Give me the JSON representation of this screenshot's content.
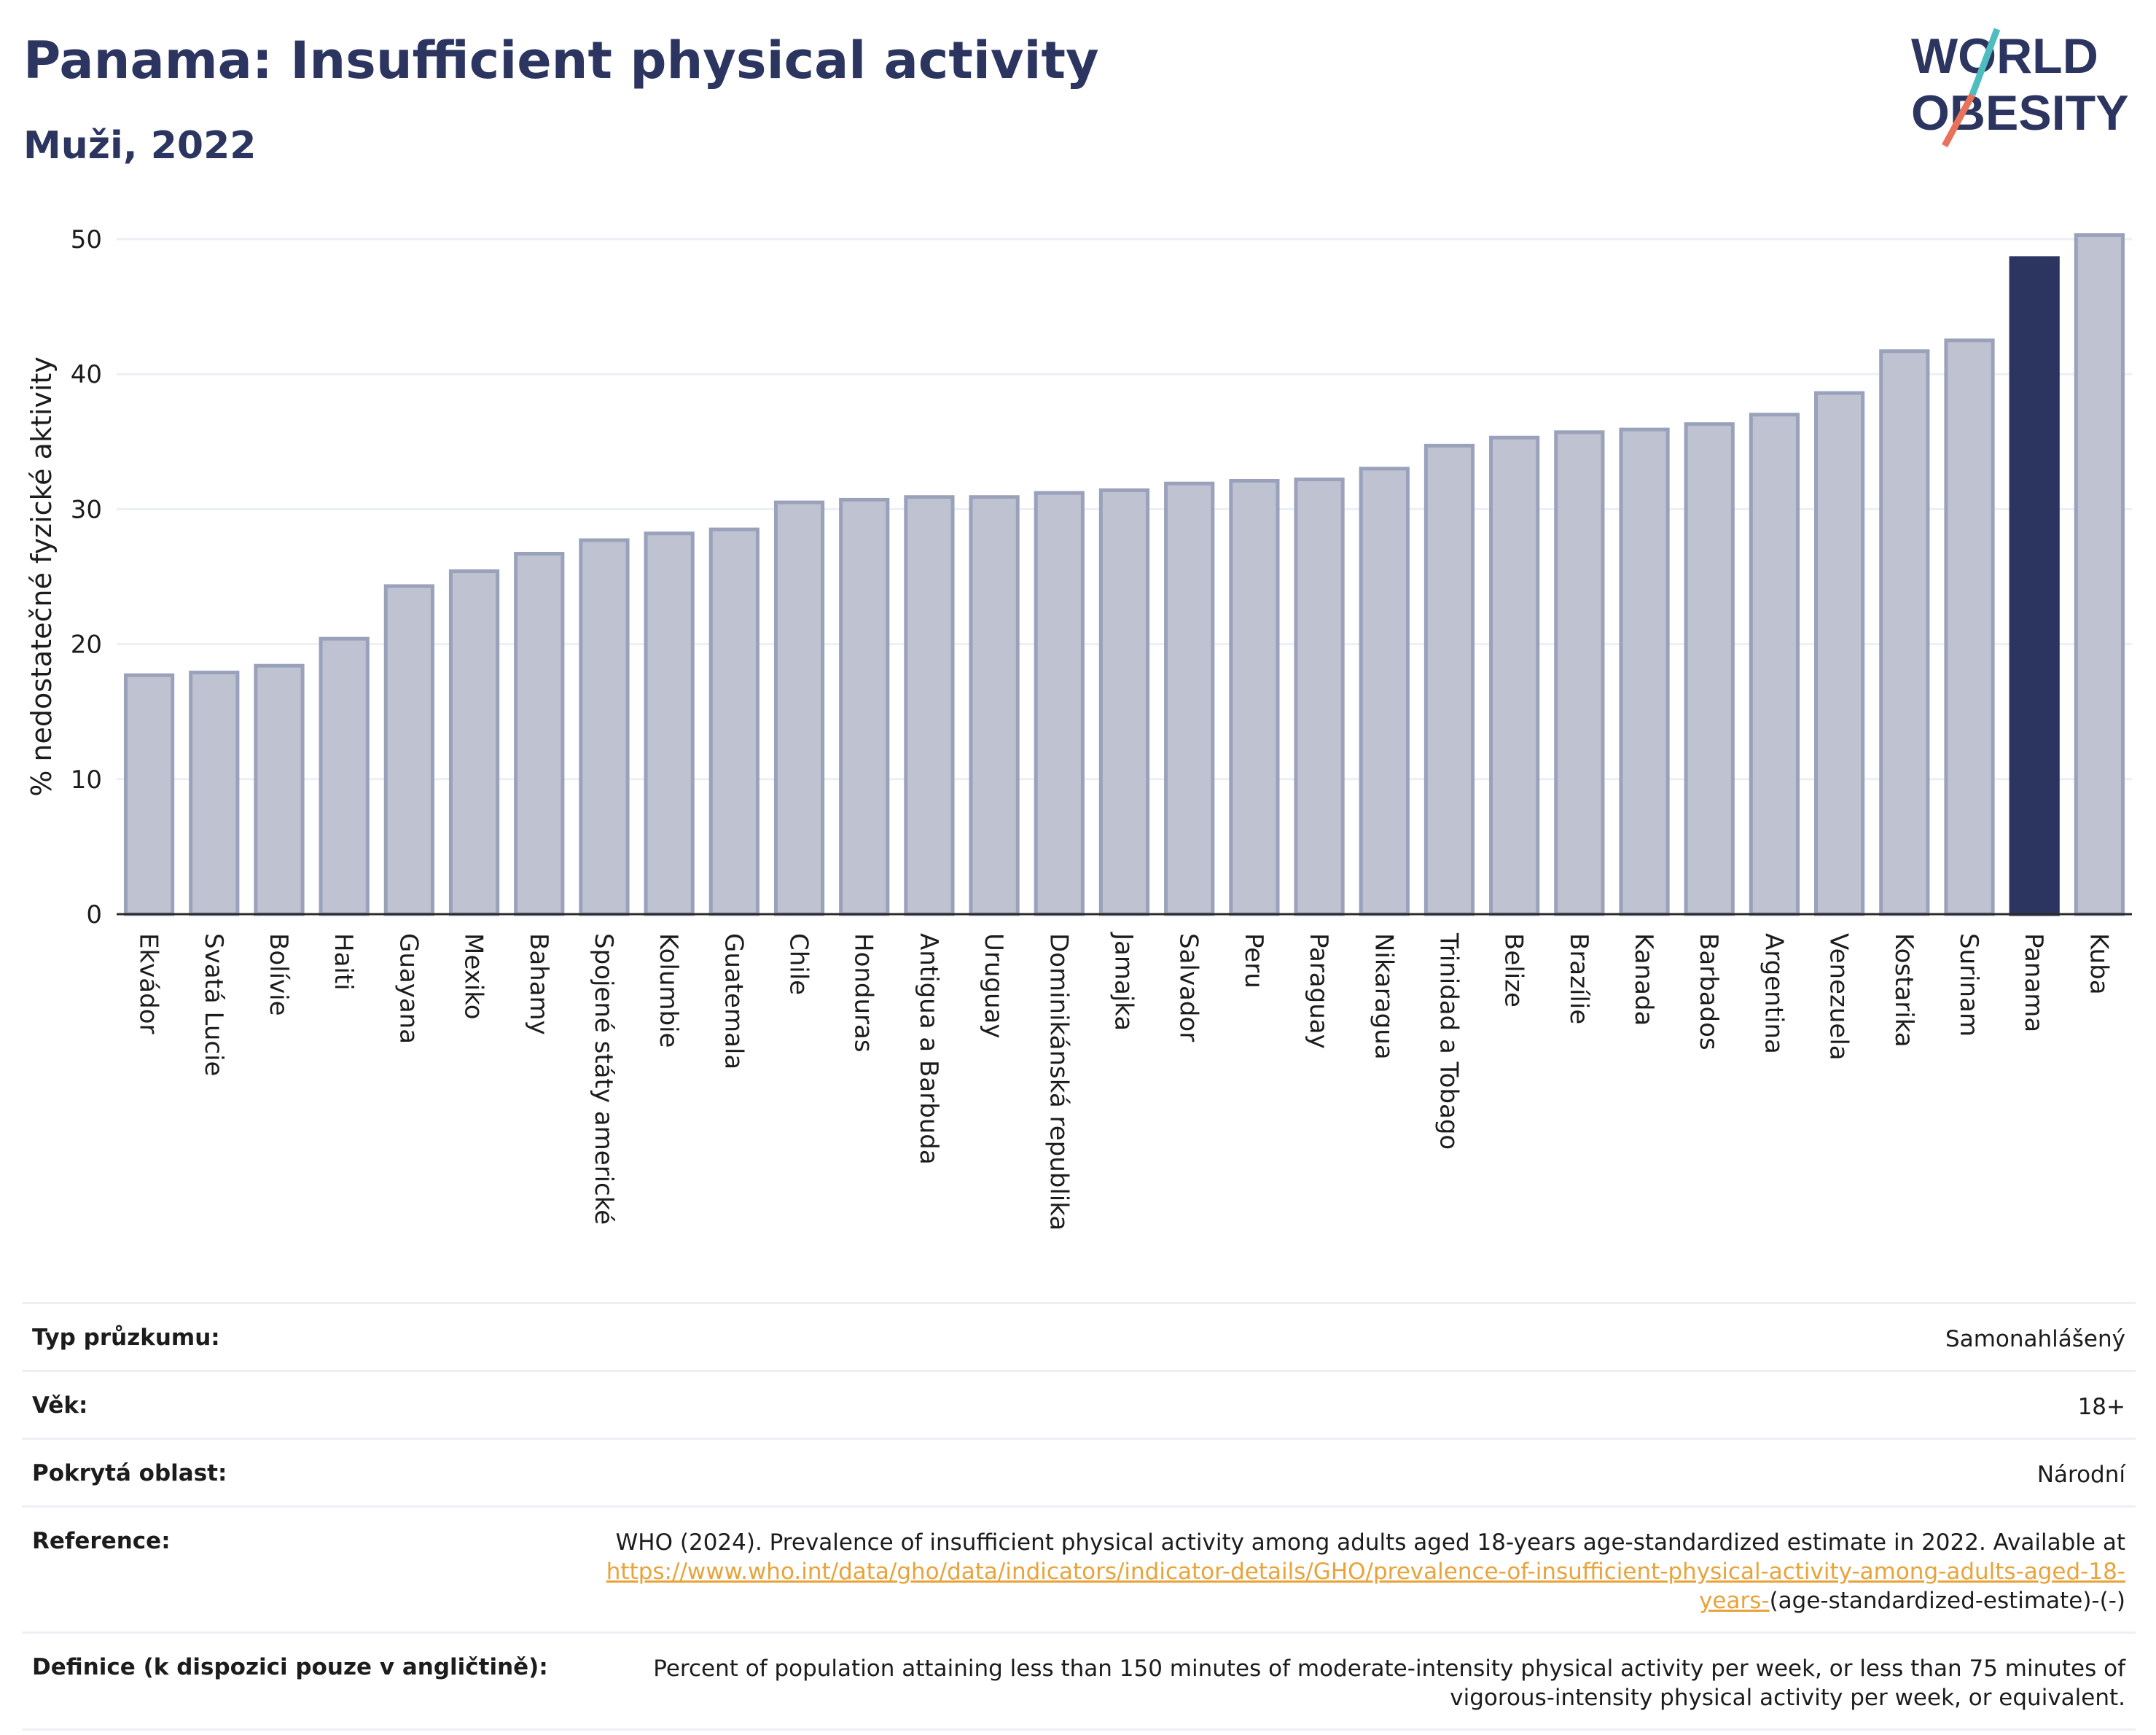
{
  "title": "Panama: Insufficient physical activity",
  "subtitle": "Muži, 2022",
  "logo": {
    "line1": "WORLD",
    "line2": "OBESITY"
  },
  "colors": {
    "bar": "#bfc3d1",
    "bar_border": "#9aa1bb",
    "highlight": "#2b3560",
    "title": "#2b3560",
    "link": "#e8a33a"
  },
  "chart_data": {
    "type": "bar",
    "ylabel": "% nedostatečné fyzické aktivity",
    "ylim": [
      0,
      50
    ],
    "yticks": [
      0,
      10,
      20,
      30,
      40,
      50
    ],
    "grid": true,
    "highlight": "Panama",
    "categories": [
      "Ekvádor",
      "Svatá Lucie",
      "Bolívie",
      "Haiti",
      "Guayana",
      "Mexiko",
      "Bahamy",
      "Spojené státy americké",
      "Kolumbie",
      "Guatemala",
      "Chile",
      "Honduras",
      "Antigua a Barbuda",
      "Uruguay",
      "Dominikánská republika",
      "Jamajka",
      "Salvador",
      "Peru",
      "Paraguay",
      "Nikaragua",
      "Trinidad a Tobago",
      "Belize",
      "Brazílie",
      "Kanada",
      "Barbados",
      "Argentina",
      "Venezuela",
      "Kostarika",
      "Surinam",
      "Panama",
      "Kuba"
    ],
    "values": [
      17.7,
      17.9,
      18.4,
      20.4,
      24.3,
      25.4,
      26.7,
      27.7,
      28.2,
      28.5,
      30.5,
      30.7,
      30.9,
      30.9,
      31.2,
      31.4,
      31.9,
      32.1,
      32.2,
      33.0,
      34.7,
      35.3,
      35.7,
      35.9,
      36.3,
      37.0,
      38.6,
      41.7,
      42.5,
      48.6,
      50.3
    ]
  },
  "info": [
    {
      "label": "Typ průzkumu:",
      "value": "Samonahlášený"
    },
    {
      "label": "Věk:",
      "value": "18+"
    },
    {
      "label": "Pokrytá oblast:",
      "value": "Národní"
    },
    {
      "label": "Reference:",
      "value_pre": "WHO (2024). Prevalence of insufficient physical activity among adults aged 18-years age-standardized estimate in 2022. Available at",
      "link": "https://www.who.int/data/gho/data/indicators/indicator-details/GHO/prevalence-of-insufficient-physical-activity-among-adults-aged-18-years-",
      "value_post": "(age-standardized-estimate)-(-)"
    },
    {
      "label": "Definice (k dispozici pouze v angličtině):",
      "value": "Percent of population attaining less than 150 minutes of moderate-intensity physical activity per week, or less than 75 minutes of vigorous-intensity physical activity per week, or equivalent."
    }
  ]
}
